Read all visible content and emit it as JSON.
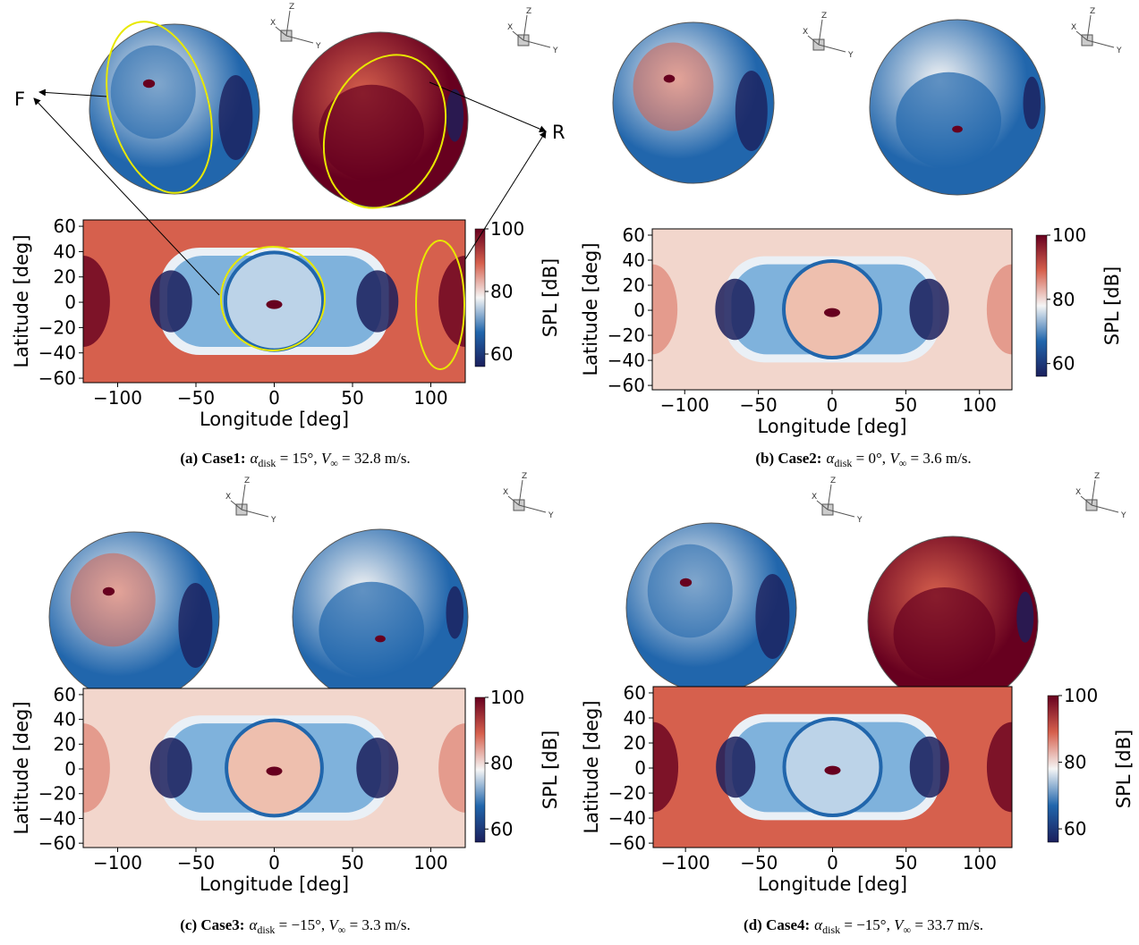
{
  "chart_data": [
    {
      "type": "heatmap",
      "xlabel": "Longitude [deg]",
      "ylabel": "Latitude [deg]",
      "colorbar_label": "SPL [dB]",
      "xlim": [
        -122,
        122
      ],
      "ylim": [
        -63.5,
        65
      ],
      "clim": [
        56,
        100
      ],
      "xticks": [
        {
          "value": -100,
          "label": "−100"
        },
        {
          "value": -50,
          "label": "−50"
        },
        0,
        50,
        100
      ],
      "yticks": [
        {
          "value": -60,
          "label": "−60"
        },
        {
          "value": -40,
          "label": "−40"
        },
        {
          "value": -20,
          "label": "−20"
        },
        0,
        20,
        40,
        60
      ],
      "cticks": [
        60,
        80,
        100
      ],
      "colors": [
        "#1b1f5c",
        "#2166ac",
        "#f5f5f5",
        "#d6604d",
        "#67001f"
      ],
      "triad_labels": [
        "X",
        "Y",
        "Z"
      ],
      "annotations": [
        "F",
        "R"
      ],
      "caption": {
        "label": "(a) Case1:",
        "alpha": "α",
        "sub": "disk",
        "alpha_text": " = 15°, ",
        "v": "V",
        "v_sub": "∞",
        "v_text": " = 32.8 m/s."
      }
    },
    {
      "type": "heatmap",
      "xlabel": "Longitude [deg]",
      "ylabel": "Latitude [deg]",
      "colorbar_label": "SPL [dB]",
      "xlim": [
        -122,
        122
      ],
      "ylim": [
        -63.5,
        65
      ],
      "clim": [
        56,
        100
      ],
      "xticks": [
        {
          "value": -100,
          "label": "−100"
        },
        {
          "value": -50,
          "label": "−50"
        },
        0,
        50,
        100
      ],
      "yticks": [
        {
          "value": -60,
          "label": "−60"
        },
        {
          "value": -40,
          "label": "−40"
        },
        {
          "value": -20,
          "label": "−20"
        },
        0,
        20,
        40,
        60
      ],
      "cticks": [
        60,
        80,
        100
      ],
      "colors": [
        "#1b1f5c",
        "#2166ac",
        "#f5f5f5",
        "#d6604d",
        "#67001f"
      ],
      "triad_labels": [
        "X",
        "Y",
        "Z"
      ],
      "caption": {
        "label": "(b) Case2:",
        "alpha": "α",
        "sub": "disk",
        "alpha_text": " = 0°, ",
        "v": "V",
        "v_sub": "∞",
        "v_text": " = 3.6 m/s."
      }
    },
    {
      "type": "heatmap",
      "xlabel": "Longitude [deg]",
      "ylabel": "Latitude [deg]",
      "colorbar_label": "SPL [dB]",
      "xlim": [
        -122,
        122
      ],
      "ylim": [
        -63.5,
        65
      ],
      "clim": [
        56,
        100
      ],
      "xticks": [
        {
          "value": -100,
          "label": "−100"
        },
        {
          "value": -50,
          "label": "−50"
        },
        0,
        50,
        100
      ],
      "yticks": [
        {
          "value": -60,
          "label": "−60"
        },
        {
          "value": -40,
          "label": "−40"
        },
        {
          "value": -20,
          "label": "−20"
        },
        0,
        20,
        40,
        60
      ],
      "cticks": [
        60,
        80,
        100
      ],
      "colors": [
        "#1b1f5c",
        "#2166ac",
        "#f5f5f5",
        "#d6604d",
        "#67001f"
      ],
      "triad_labels": [
        "X",
        "Y",
        "Z"
      ],
      "caption": {
        "label": "(c) Case3:",
        "alpha": "α",
        "sub": "disk",
        "alpha_text": " = −15°, ",
        "v": "V",
        "v_sub": "∞",
        "v_text": " = 3.3 m/s."
      }
    },
    {
      "type": "heatmap",
      "xlabel": "Longitude [deg]",
      "ylabel": "Latitude [deg]",
      "colorbar_label": "SPL [dB]",
      "xlim": [
        -122,
        122
      ],
      "ylim": [
        -63.5,
        65
      ],
      "clim": [
        56,
        100
      ],
      "xticks": [
        {
          "value": -100,
          "label": "−100"
        },
        {
          "value": -50,
          "label": "−50"
        },
        0,
        50,
        100
      ],
      "yticks": [
        {
          "value": -60,
          "label": "−60"
        },
        {
          "value": -40,
          "label": "−40"
        },
        {
          "value": -20,
          "label": "−20"
        },
        0,
        20,
        40,
        60
      ],
      "cticks": [
        60,
        80,
        100
      ],
      "colors": [
        "#1b1f5c",
        "#2166ac",
        "#f5f5f5",
        "#d6604d",
        "#67001f"
      ],
      "triad_labels": [
        "X",
        "Y",
        "Z"
      ],
      "caption": {
        "label": "(d) Case4:",
        "alpha": "α",
        "sub": "disk",
        "alpha_text": " = −15°, ",
        "v": "V",
        "v_sub": "∞",
        "v_text": " = 33.7 m/s."
      }
    }
  ]
}
